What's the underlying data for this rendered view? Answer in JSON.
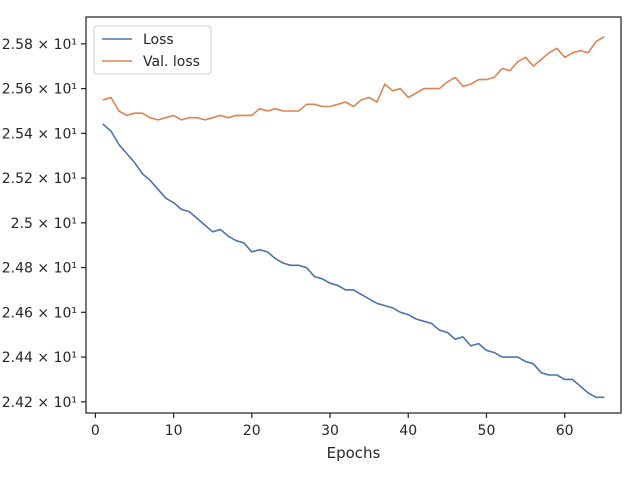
{
  "chart_data": {
    "type": "line",
    "title": "",
    "xlabel": "Epochs",
    "ylabel": "",
    "xlim": [
      -1.2,
      67.2
    ],
    "ylim": [
      24.15,
      25.92
    ],
    "x_ticks": [
      0,
      10,
      20,
      30,
      40,
      50,
      60
    ],
    "x_tick_labels": [
      "0",
      "10",
      "20",
      "30",
      "40",
      "50",
      "60"
    ],
    "y_ticks": [
      24.2,
      24.4,
      24.6,
      24.8,
      25.0,
      25.2,
      25.4,
      25.6,
      25.8
    ],
    "y_tick_labels": [
      "2.42 × 10¹",
      "2.44 × 10¹",
      "2.46 × 10¹",
      "2.48 × 10¹",
      "2.5 × 10¹",
      "2.52 × 10¹",
      "2.54 × 10¹",
      "2.56 × 10¹",
      "2.58 × 10¹"
    ],
    "grid": false,
    "legend_position": "top-left",
    "x": [
      1,
      2,
      3,
      4,
      5,
      6,
      7,
      8,
      9,
      10,
      11,
      12,
      13,
      14,
      15,
      16,
      17,
      18,
      19,
      20,
      21,
      22,
      23,
      24,
      25,
      26,
      27,
      28,
      29,
      30,
      31,
      32,
      33,
      34,
      35,
      36,
      37,
      38,
      39,
      40,
      41,
      42,
      43,
      44,
      45,
      46,
      47,
      48,
      49,
      50,
      51,
      52,
      53,
      54,
      55,
      56,
      57,
      58,
      59,
      60,
      61,
      62,
      63,
      64,
      65
    ],
    "series": [
      {
        "name": "Loss",
        "color": "#4c72b0",
        "values": [
          25.44,
          25.41,
          25.35,
          25.31,
          25.27,
          25.22,
          25.19,
          25.15,
          25.11,
          25.09,
          25.06,
          25.05,
          25.02,
          24.99,
          24.96,
          24.97,
          24.94,
          24.92,
          24.91,
          24.87,
          24.88,
          24.87,
          24.84,
          24.82,
          24.81,
          24.81,
          24.8,
          24.76,
          24.75,
          24.73,
          24.72,
          24.7,
          24.7,
          24.68,
          24.66,
          24.64,
          24.63,
          24.62,
          24.6,
          24.59,
          24.57,
          24.56,
          24.55,
          24.52,
          24.51,
          24.48,
          24.49,
          24.45,
          24.46,
          24.43,
          24.42,
          24.4,
          24.4,
          24.4,
          24.38,
          24.37,
          24.33,
          24.32,
          24.32,
          24.3,
          24.3,
          24.27,
          24.24,
          24.22,
          24.22
        ]
      },
      {
        "name": "Val. loss",
        "color": "#dd8452",
        "values": [
          25.55,
          25.56,
          25.5,
          25.48,
          25.49,
          25.49,
          25.47,
          25.46,
          25.47,
          25.48,
          25.46,
          25.47,
          25.47,
          25.46,
          25.47,
          25.48,
          25.47,
          25.48,
          25.48,
          25.48,
          25.51,
          25.5,
          25.51,
          25.5,
          25.5,
          25.5,
          25.53,
          25.53,
          25.52,
          25.52,
          25.53,
          25.54,
          25.52,
          25.55,
          25.56,
          25.54,
          25.62,
          25.59,
          25.6,
          25.56,
          25.58,
          25.6,
          25.6,
          25.6,
          25.63,
          25.65,
          25.61,
          25.62,
          25.64,
          25.64,
          25.65,
          25.69,
          25.68,
          25.72,
          25.74,
          25.7,
          25.73,
          25.76,
          25.78,
          25.74,
          25.76,
          25.77,
          25.76,
          25.81,
          25.83
        ]
      }
    ]
  }
}
